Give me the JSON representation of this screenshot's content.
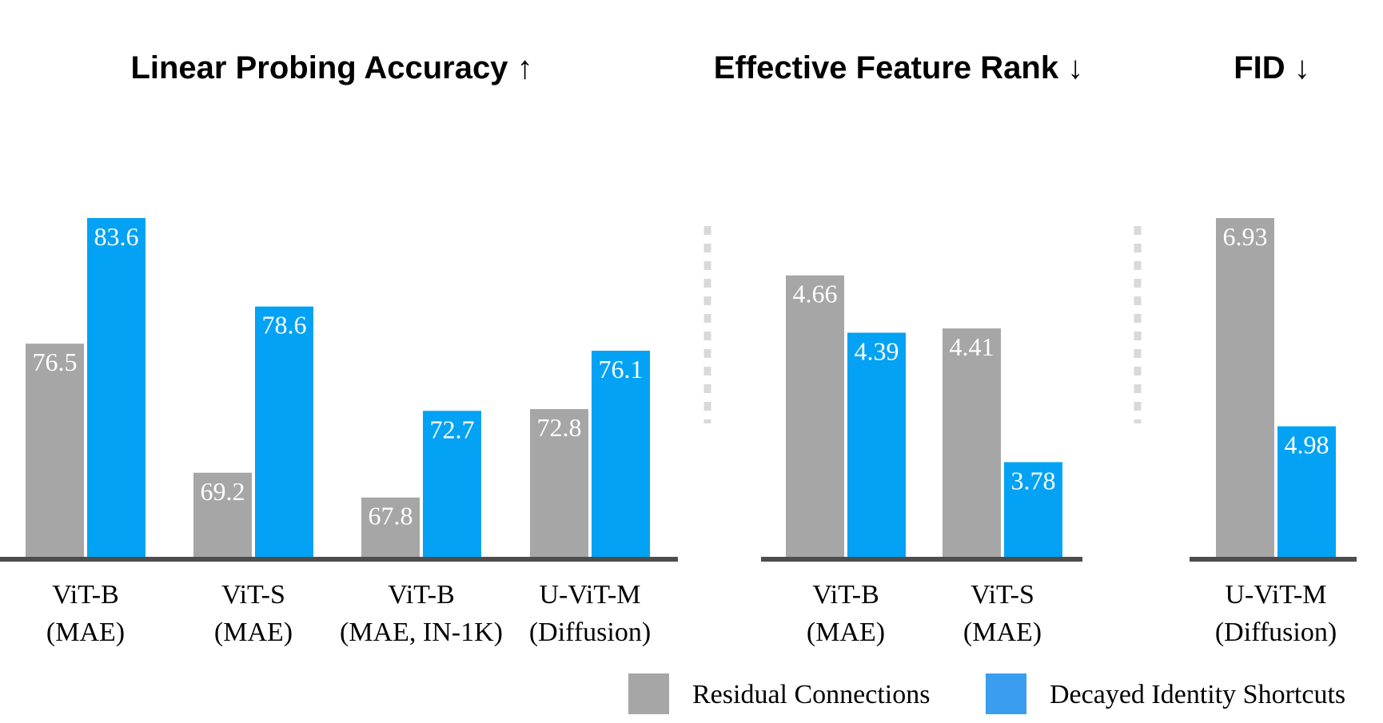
{
  "colors": {
    "residual": "#a6a6a6",
    "decayed": "#03a2f4",
    "legend_decayed": "#3a9df0",
    "axis": "#4d4d4d",
    "divider": "#d9d9d9"
  },
  "legend": {
    "residual_label": "Residual Connections",
    "decayed_label": "Decayed Identity Shortcuts"
  },
  "chart_data": [
    {
      "type": "bar",
      "title": "Linear Probing Accuracy ↑",
      "categories": [
        [
          "ViT-B",
          "(MAE)"
        ],
        [
          "ViT-S",
          "(MAE)"
        ],
        [
          "ViT-B",
          "(MAE, IN-1K)"
        ],
        [
          "U-ViT-M",
          "(Diffusion)"
        ]
      ],
      "series": [
        {
          "name": "Residual Connections",
          "values": [
            "76.5",
            "69.2",
            "67.8",
            "72.8"
          ]
        },
        {
          "name": "Decayed Identity Shortcuts",
          "values": [
            "83.6",
            "78.6",
            "72.7",
            "76.1"
          ]
        }
      ],
      "ylim": [
        64.4,
        83.6
      ]
    },
    {
      "type": "bar",
      "title": "Effective Feature Rank ↓",
      "categories": [
        [
          "ViT-B",
          "(MAE)"
        ],
        [
          "ViT-S",
          "(MAE)"
        ]
      ],
      "series": [
        {
          "name": "Residual Connections",
          "values": [
            "4.66",
            "4.41"
          ]
        },
        {
          "name": "Decayed Identity Shortcuts",
          "values": [
            "4.39",
            "3.78"
          ]
        }
      ],
      "ylim": [
        3.33,
        4.93
      ]
    },
    {
      "type": "bar",
      "title": "FID ↓",
      "categories": [
        [
          "U-ViT-M",
          "(Diffusion)"
        ]
      ],
      "series": [
        {
          "name": "Residual Connections",
          "values": [
            "6.93"
          ]
        },
        {
          "name": "Decayed Identity Shortcuts",
          "values": [
            "4.98"
          ]
        }
      ],
      "ylim": [
        3.75,
        6.93
      ]
    }
  ]
}
